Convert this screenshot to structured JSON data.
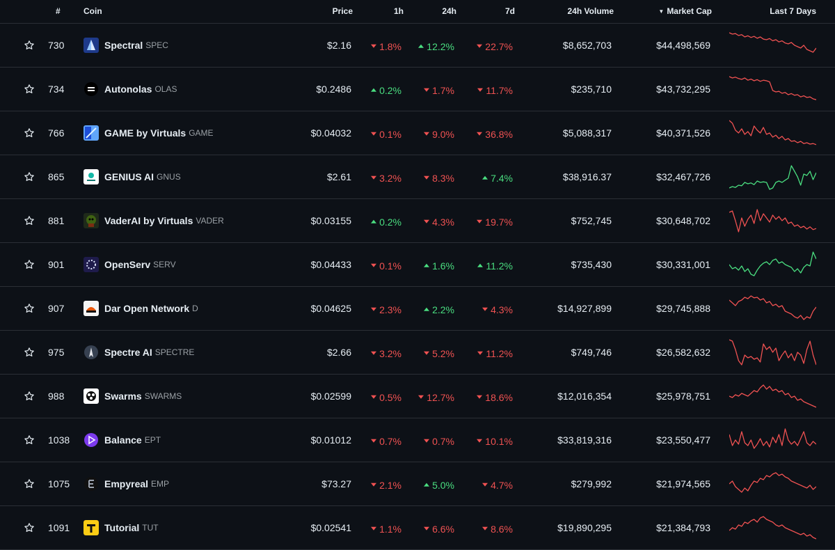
{
  "header": {
    "rank": "#",
    "coin": "Coin",
    "price": "Price",
    "h1": "1h",
    "h24": "24h",
    "d7": "7d",
    "volume": "24h Volume",
    "market_cap": "Market Cap",
    "market_cap_sort": "▼",
    "last7": "Last 7 Days"
  },
  "colors": {
    "up": "#4ade80",
    "down": "#f05252",
    "background": "#0d1117"
  },
  "rows": [
    {
      "rank": "730",
      "name": "Spectral",
      "symbol": "SPEC",
      "price": "$2.16",
      "h1": "1.8%",
      "h1_dir": "down",
      "h24": "12.2%",
      "h24_dir": "up",
      "d7": "22.7%",
      "d7_dir": "down",
      "volume": "$8,652,703",
      "market_cap": "$44,498,569",
      "logo": "spectral-logo",
      "spark_trend": "down",
      "spark": [
        0.95,
        0.9,
        0.92,
        0.85,
        0.88,
        0.8,
        0.84,
        0.78,
        0.82,
        0.75,
        0.8,
        0.72,
        0.7,
        0.74,
        0.66,
        0.7,
        0.62,
        0.66,
        0.58,
        0.55,
        0.6,
        0.5,
        0.45,
        0.4,
        0.5,
        0.35,
        0.3,
        0.25,
        0.4
      ]
    },
    {
      "rank": "734",
      "name": "Autonolas",
      "symbol": "OLAS",
      "price": "$0.2486",
      "h1": "0.2%",
      "h1_dir": "up",
      "h24": "1.7%",
      "h24_dir": "down",
      "d7": "11.7%",
      "d7_dir": "down",
      "volume": "$235,710",
      "market_cap": "$43,732,295",
      "logo": "autonolas-logo",
      "spark_trend": "down",
      "spark": [
        0.95,
        0.9,
        0.93,
        0.88,
        0.85,
        0.9,
        0.82,
        0.86,
        0.8,
        0.84,
        0.78,
        0.82,
        0.8,
        0.76,
        0.45,
        0.4,
        0.42,
        0.35,
        0.38,
        0.3,
        0.34,
        0.28,
        0.3,
        0.22,
        0.26,
        0.2,
        0.22,
        0.15,
        0.12
      ]
    },
    {
      "rank": "766",
      "name": "GAME by Virtuals",
      "symbol": "GAME",
      "price": "$0.04032",
      "h1": "0.1%",
      "h1_dir": "down",
      "h24": "9.0%",
      "h24_dir": "down",
      "d7": "36.8%",
      "d7_dir": "down",
      "volume": "$5,088,317",
      "market_cap": "$40,371,526",
      "logo": "game-logo",
      "spark_trend": "down",
      "spark": [
        0.95,
        0.85,
        0.6,
        0.5,
        0.65,
        0.45,
        0.55,
        0.4,
        0.75,
        0.6,
        0.5,
        0.7,
        0.45,
        0.5,
        0.35,
        0.42,
        0.3,
        0.38,
        0.25,
        0.3,
        0.2,
        0.22,
        0.15,
        0.2,
        0.12,
        0.15,
        0.1,
        0.12,
        0.08
      ]
    },
    {
      "rank": "865",
      "name": "GENIUS AI",
      "symbol": "GNUS",
      "price": "$2.61",
      "h1": "3.2%",
      "h1_dir": "down",
      "h24": "8.3%",
      "h24_dir": "down",
      "d7": "7.4%",
      "d7_dir": "up",
      "volume": "$38,916.37",
      "market_cap": "$32,467,726",
      "logo": "genius-logo",
      "spark_trend": "up",
      "spark": [
        0.1,
        0.15,
        0.12,
        0.2,
        0.18,
        0.3,
        0.25,
        0.28,
        0.22,
        0.35,
        0.3,
        0.32,
        0.3,
        0.05,
        0.1,
        0.3,
        0.35,
        0.3,
        0.38,
        0.45,
        0.9,
        0.7,
        0.5,
        0.2,
        0.6,
        0.55,
        0.7,
        0.4,
        0.65
      ]
    },
    {
      "rank": "881",
      "name": "VaderAI by Virtuals",
      "symbol": "VADER",
      "price": "$0.03155",
      "h1": "0.2%",
      "h1_dir": "up",
      "h24": "4.3%",
      "h24_dir": "down",
      "d7": "19.7%",
      "d7_dir": "down",
      "volume": "$752,745",
      "market_cap": "$30,648,702",
      "logo": "vader-logo",
      "spark_trend": "down",
      "spark": [
        0.8,
        0.85,
        0.5,
        0.1,
        0.6,
        0.3,
        0.55,
        0.7,
        0.4,
        0.9,
        0.5,
        0.75,
        0.6,
        0.45,
        0.7,
        0.55,
        0.65,
        0.5,
        0.6,
        0.4,
        0.45,
        0.3,
        0.35,
        0.25,
        0.3,
        0.2,
        0.28,
        0.18,
        0.22
      ]
    },
    {
      "rank": "901",
      "name": "OpenServ",
      "symbol": "SERV",
      "price": "$0.04433",
      "h1": "0.1%",
      "h1_dir": "down",
      "h24": "1.6%",
      "h24_dir": "up",
      "d7": "11.2%",
      "d7_dir": "up",
      "volume": "$735,430",
      "market_cap": "$30,331,001",
      "logo": "openserv-logo",
      "spark_trend": "up",
      "spark": [
        0.5,
        0.35,
        0.4,
        0.3,
        0.45,
        0.25,
        0.35,
        0.15,
        0.1,
        0.3,
        0.45,
        0.55,
        0.6,
        0.5,
        0.65,
        0.7,
        0.55,
        0.6,
        0.5,
        0.45,
        0.4,
        0.25,
        0.35,
        0.2,
        0.4,
        0.5,
        0.45,
        0.95,
        0.7
      ]
    },
    {
      "rank": "907",
      "name": "Dar Open Network",
      "symbol": "D",
      "price": "$0.04625",
      "h1": "2.3%",
      "h1_dir": "down",
      "h24": "2.2%",
      "h24_dir": "up",
      "d7": "4.3%",
      "d7_dir": "down",
      "volume": "$14,927,899",
      "market_cap": "$29,745,888",
      "logo": "dar-logo",
      "spark_trend": "down",
      "spark": [
        0.8,
        0.7,
        0.6,
        0.75,
        0.8,
        0.9,
        0.85,
        0.95,
        0.88,
        0.9,
        0.8,
        0.85,
        0.7,
        0.75,
        0.6,
        0.65,
        0.55,
        0.6,
        0.4,
        0.35,
        0.3,
        0.2,
        0.15,
        0.25,
        0.1,
        0.2,
        0.15,
        0.4,
        0.55
      ]
    },
    {
      "rank": "975",
      "name": "Spectre AI",
      "symbol": "SPECTRE",
      "price": "$2.66",
      "h1": "3.2%",
      "h1_dir": "down",
      "h24": "5.2%",
      "h24_dir": "down",
      "d7": "11.2%",
      "d7_dir": "down",
      "volume": "$749,746",
      "market_cap": "$26,582,632",
      "logo": "spectre-logo",
      "spark_trend": "down",
      "spark": [
        0.95,
        0.9,
        0.6,
        0.2,
        0.05,
        0.4,
        0.3,
        0.35,
        0.25,
        0.3,
        0.15,
        0.8,
        0.6,
        0.7,
        0.5,
        0.65,
        0.2,
        0.4,
        0.55,
        0.3,
        0.45,
        0.2,
        0.5,
        0.4,
        0.1,
        0.6,
        0.9,
        0.4,
        0.05
      ]
    },
    {
      "rank": "988",
      "name": "Swarms",
      "symbol": "SWARMS",
      "price": "$0.02599",
      "h1": "0.5%",
      "h1_dir": "down",
      "h24": "12.7%",
      "h24_dir": "down",
      "d7": "18.6%",
      "d7_dir": "down",
      "volume": "$12,016,354",
      "market_cap": "$25,978,751",
      "logo": "swarms-logo",
      "spark_trend": "down",
      "spark": [
        0.5,
        0.45,
        0.55,
        0.5,
        0.6,
        0.55,
        0.5,
        0.6,
        0.7,
        0.65,
        0.8,
        0.9,
        0.75,
        0.85,
        0.7,
        0.75,
        0.65,
        0.7,
        0.55,
        0.6,
        0.45,
        0.5,
        0.35,
        0.4,
        0.3,
        0.25,
        0.2,
        0.15,
        0.1
      ]
    },
    {
      "rank": "1038",
      "name": "Balance",
      "symbol": "EPT",
      "price": "$0.01012",
      "h1": "0.7%",
      "h1_dir": "down",
      "h24": "0.7%",
      "h24_dir": "down",
      "d7": "10.1%",
      "d7_dir": "down",
      "volume": "$33,819,316",
      "market_cap": "$23,550,477",
      "logo": "balance-logo",
      "spark_trend": "down",
      "spark": [
        0.7,
        0.3,
        0.5,
        0.35,
        0.8,
        0.4,
        0.3,
        0.5,
        0.2,
        0.35,
        0.55,
        0.3,
        0.45,
        0.25,
        0.6,
        0.4,
        0.7,
        0.3,
        0.9,
        0.5,
        0.35,
        0.45,
        0.3,
        0.55,
        0.8,
        0.4,
        0.3,
        0.45,
        0.35
      ]
    },
    {
      "rank": "1075",
      "name": "Empyreal",
      "symbol": "EMP",
      "price": "$73.27",
      "h1": "2.1%",
      "h1_dir": "down",
      "h24": "5.0%",
      "h24_dir": "up",
      "d7": "4.7%",
      "d7_dir": "down",
      "volume": "$279,992",
      "market_cap": "$21,974,565",
      "logo": "empyreal-logo",
      "spark_trend": "down",
      "spark": [
        0.5,
        0.6,
        0.4,
        0.3,
        0.2,
        0.35,
        0.25,
        0.45,
        0.6,
        0.55,
        0.7,
        0.65,
        0.8,
        0.75,
        0.85,
        0.9,
        0.8,
        0.85,
        0.75,
        0.7,
        0.6,
        0.55,
        0.5,
        0.45,
        0.4,
        0.35,
        0.45,
        0.3,
        0.4
      ]
    },
    {
      "rank": "1091",
      "name": "Tutorial",
      "symbol": "TUT",
      "price": "$0.02541",
      "h1": "1.1%",
      "h1_dir": "down",
      "h24": "6.6%",
      "h24_dir": "down",
      "d7": "8.6%",
      "d7_dir": "down",
      "volume": "$19,890,295",
      "market_cap": "$21,384,793",
      "logo": "tutorial-logo",
      "spark_trend": "down",
      "spark": [
        0.4,
        0.5,
        0.45,
        0.6,
        0.55,
        0.7,
        0.65,
        0.75,
        0.8,
        0.7,
        0.85,
        0.9,
        0.8,
        0.75,
        0.7,
        0.6,
        0.55,
        0.6,
        0.5,
        0.45,
        0.4,
        0.35,
        0.3,
        0.25,
        0.3,
        0.2,
        0.25,
        0.15,
        0.1
      ]
    }
  ]
}
